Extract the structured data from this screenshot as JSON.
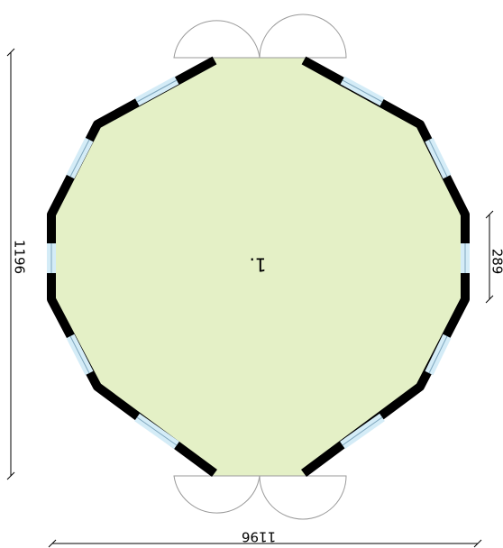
{
  "plan": {
    "room_label": "1.",
    "dimensions": {
      "width": "1196",
      "height": "1196",
      "side_segment": "289"
    },
    "colors": {
      "floor": "#e4f0c6",
      "wall": "#000000",
      "window_fill": "#d4ecf7",
      "window_line": "#7fa6bd",
      "door_line": "#9a9a9a",
      "dimension_line": "#000000"
    }
  }
}
